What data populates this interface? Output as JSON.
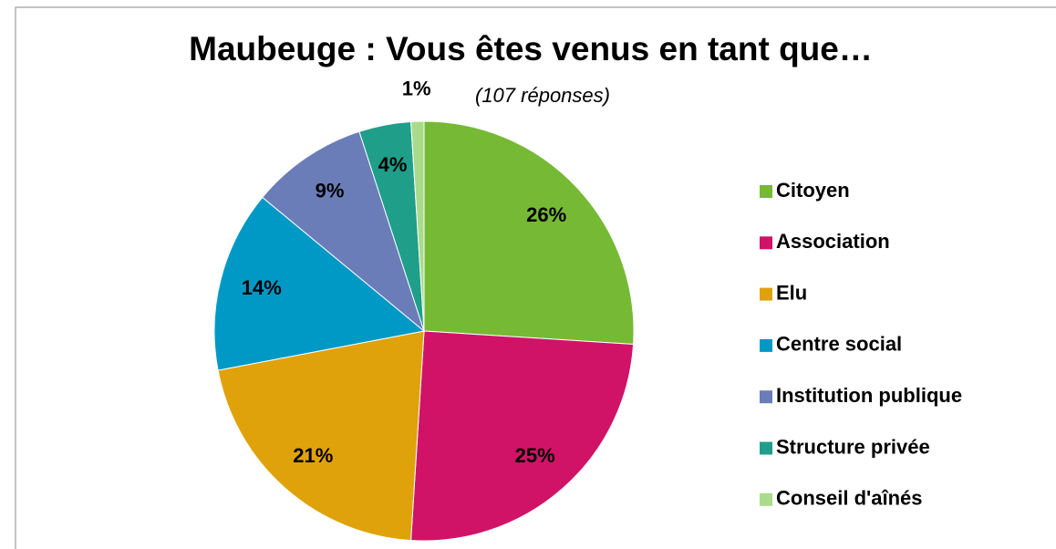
{
  "chart_data": {
    "type": "pie",
    "title": "Maubeuge : Vous êtes venus en tant que…",
    "subtitle": "(107 réponses)",
    "categories": [
      "Citoyen",
      "Association",
      "Elu",
      "Centre social",
      "Institution publique",
      "Structure privée",
      "Conseil d'aînés"
    ],
    "values": [
      26,
      25,
      21,
      14,
      9,
      4,
      1
    ],
    "value_labels": [
      "26%",
      "25%",
      "21%",
      "14%",
      "9%",
      "4%",
      "1%"
    ],
    "colors": [
      "#76b935",
      "#d01367",
      "#e0a20a",
      "#0099c6",
      "#6a7db8",
      "#1f9e89",
      "#a8dc8a"
    ],
    "legend": "right"
  }
}
